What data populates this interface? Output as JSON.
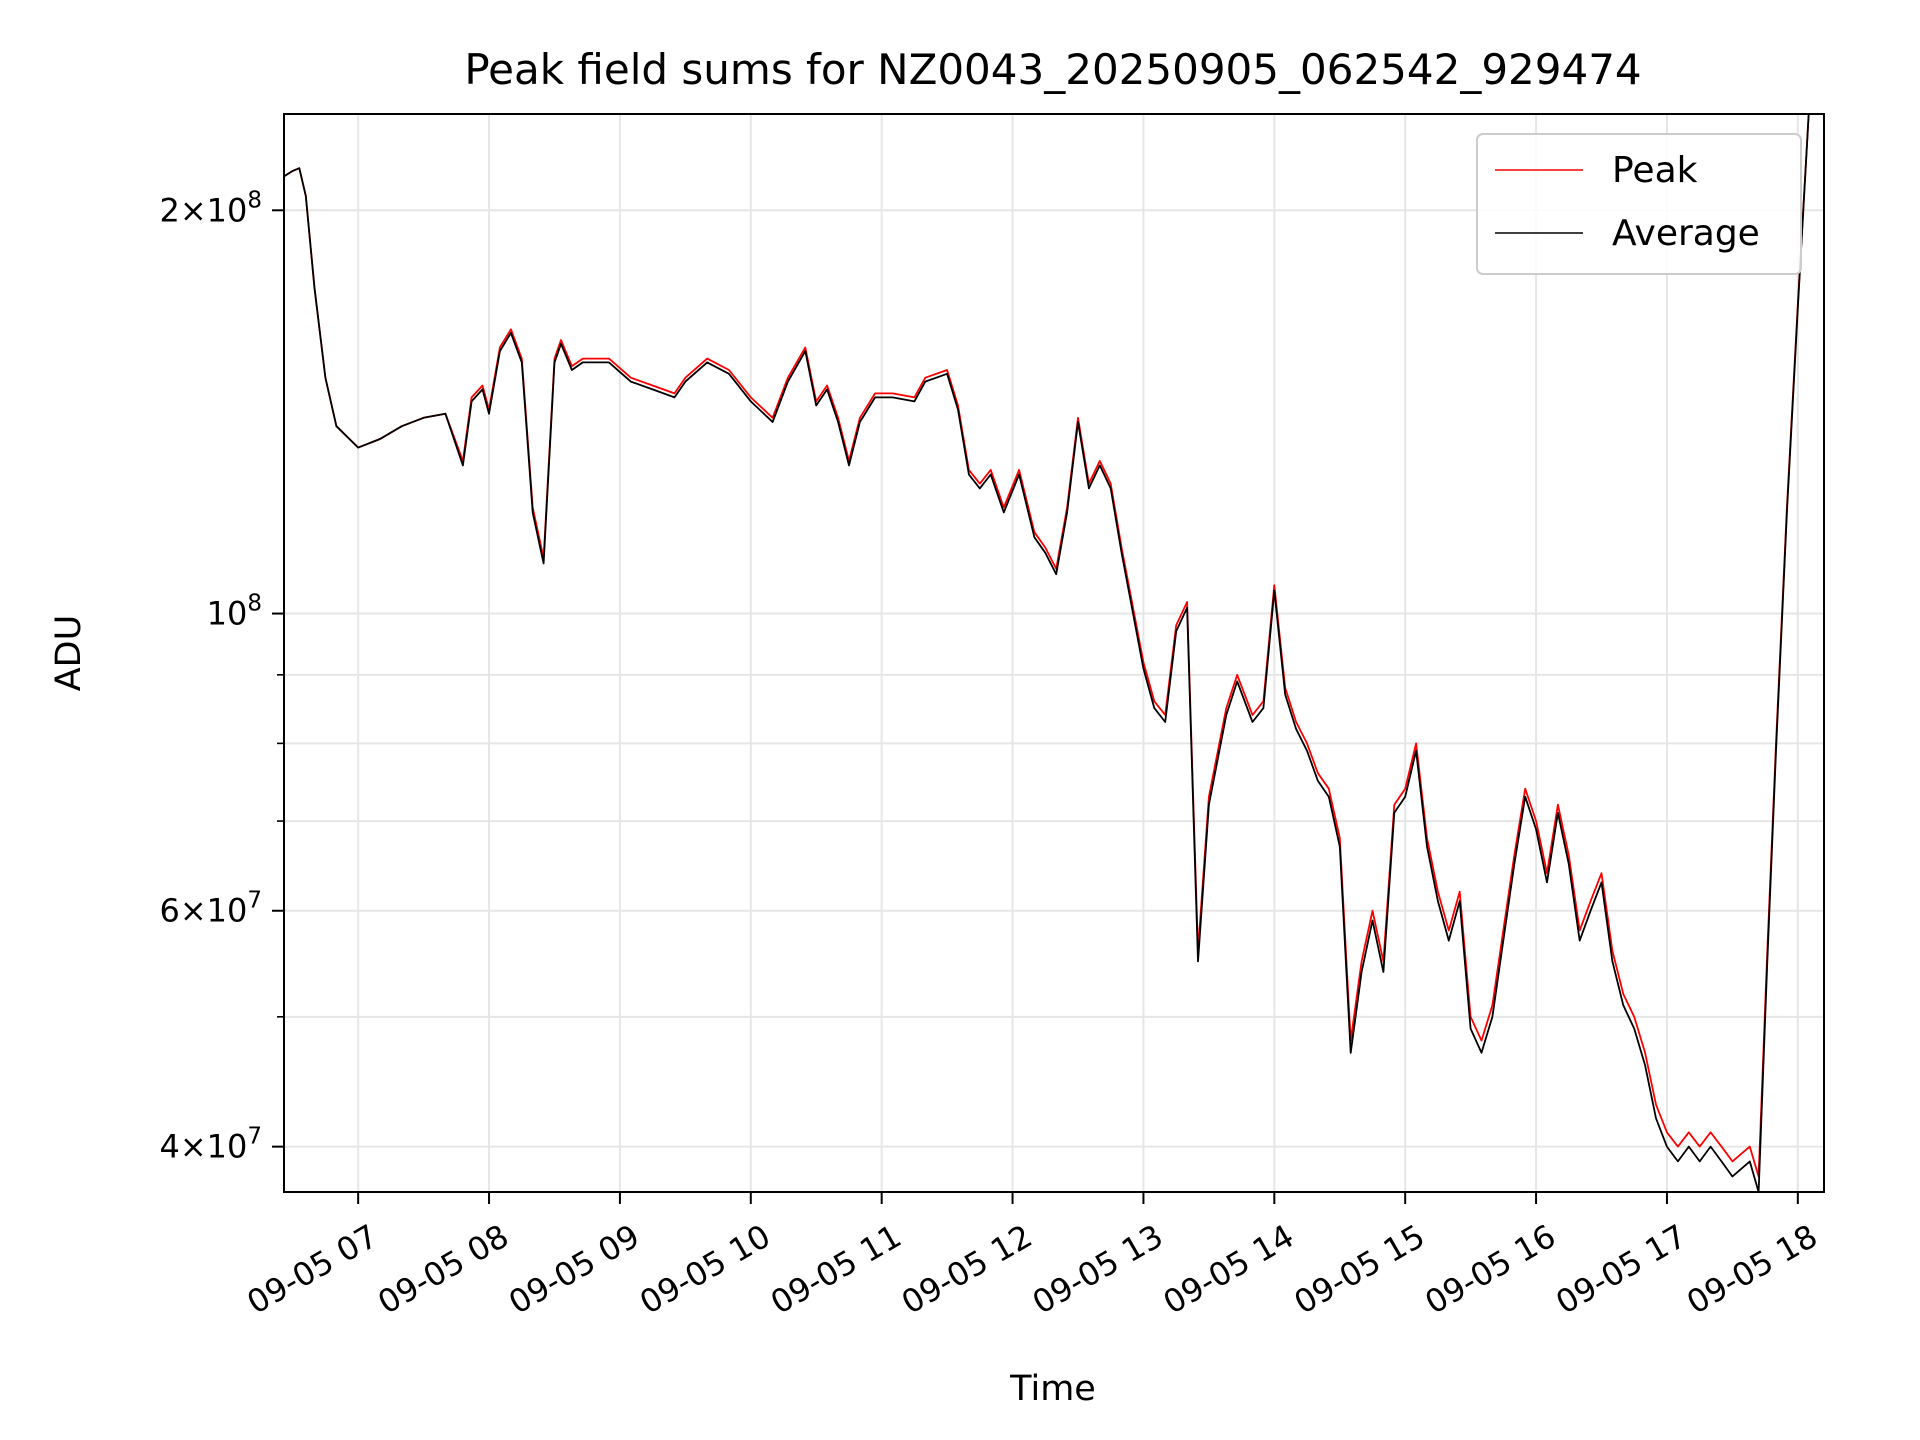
{
  "chart_data": {
    "type": "line",
    "title": "Peak field sums for NZ0043_20250905_062542_929474",
    "xlabel": "Time",
    "ylabel": "ADU",
    "y_scale": "log",
    "ylim": [
      37000000,
      236000000
    ],
    "xlim": [
      "09-05 06:26",
      "09-05 18:12"
    ],
    "grid": true,
    "legend_position": "upper right",
    "x_ticks": [
      "09-05 07",
      "09-05 08",
      "09-05 09",
      "09-05 10",
      "09-05 11",
      "09-05 12",
      "09-05 13",
      "09-05 14",
      "09-05 15",
      "09-05 16",
      "09-05 17",
      "09-05 18"
    ],
    "y_ticks": [
      {
        "value": 200000000,
        "mantissa": "2",
        "exponent": "8"
      },
      {
        "value": 100000000,
        "mantissa": "",
        "exponent": "8"
      },
      {
        "value": 60000000,
        "mantissa": "6",
        "exponent": "7"
      },
      {
        "value": 40000000,
        "mantissa": "4",
        "exponent": "7"
      }
    ],
    "y_minor_ticks": [
      50000000,
      70000000,
      80000000,
      90000000
    ],
    "x_unit_note": "x values are times on 2025-09-05 (HH:MM)",
    "series": [
      {
        "name": "Peak",
        "color": "#ff0000"
      },
      {
        "name": "Average",
        "color": "#000000"
      }
    ],
    "x": [
      "06:26",
      "06:30",
      "06:33",
      "06:36",
      "06:40",
      "06:45",
      "06:50",
      "07:00",
      "07:10",
      "07:20",
      "07:30",
      "07:40",
      "07:48",
      "07:52",
      "07:57",
      "08:00",
      "08:05",
      "08:10",
      "08:15",
      "08:20",
      "08:25",
      "08:30",
      "08:33",
      "08:38",
      "08:43",
      "08:48",
      "08:55",
      "09:05",
      "09:15",
      "09:25",
      "09:30",
      "09:40",
      "09:50",
      "10:00",
      "10:10",
      "10:17",
      "10:25",
      "10:30",
      "10:35",
      "10:40",
      "10:45",
      "10:50",
      "10:57",
      "11:05",
      "11:15",
      "11:20",
      "11:30",
      "11:35",
      "11:40",
      "11:45",
      "11:50",
      "11:56",
      "12:03",
      "12:10",
      "12:15",
      "12:20",
      "12:25",
      "12:30",
      "12:35",
      "12:40",
      "12:45",
      "12:50",
      "13:00",
      "13:05",
      "13:10",
      "13:15",
      "13:20",
      "13:25",
      "13:30",
      "13:38",
      "13:43",
      "13:50",
      "13:55",
      "14:00",
      "14:05",
      "14:10",
      "14:15",
      "14:20",
      "14:25",
      "14:30",
      "14:35",
      "14:40",
      "14:45",
      "14:50",
      "14:55",
      "15:00",
      "15:05",
      "15:10",
      "15:15",
      "15:20",
      "15:25",
      "15:30",
      "15:35",
      "15:40",
      "15:45",
      "15:50",
      "15:55",
      "16:00",
      "16:05",
      "16:10",
      "16:15",
      "16:20",
      "16:25",
      "16:30",
      "16:35",
      "16:40",
      "16:45",
      "16:50",
      "16:55",
      "17:00",
      "17:05",
      "17:10",
      "17:15",
      "17:20",
      "17:25",
      "17:30",
      "17:38",
      "17:42",
      "17:46",
      "17:50",
      "17:55",
      "18:00",
      "18:05",
      "18:12"
    ],
    "peak": [
      212,
      214,
      215,
      205,
      175,
      150,
      138,
      133,
      135,
      138,
      140,
      141,
      130,
      145,
      148,
      142,
      158,
      163,
      155,
      120,
      110,
      155,
      160,
      153,
      155,
      155,
      155,
      150,
      148,
      146,
      150,
      155,
      152,
      145,
      140,
      150,
      158,
      144,
      148,
      140,
      130,
      140,
      146,
      146,
      145,
      150,
      152,
      143,
      128,
      125,
      128,
      120,
      128,
      115,
      112,
      108,
      120,
      140,
      125,
      130,
      125,
      112,
      92,
      86,
      84,
      98,
      102,
      56,
      73,
      85,
      90,
      84,
      86,
      105,
      88,
      83,
      80,
      76,
      74,
      68,
      48,
      55,
      60,
      55,
      72,
      74,
      80,
      68,
      62,
      58,
      62,
      50,
      48,
      51,
      58,
      66,
      74,
      70,
      64,
      72,
      66,
      58,
      61,
      64,
      56,
      52,
      50,
      47,
      43,
      41,
      40,
      41,
      40,
      41,
      40,
      39,
      40,
      38,
      56,
      80,
      120,
      170,
      236
    ],
    "average": [
      212,
      214,
      215,
      205,
      175,
      150,
      138,
      133,
      135,
      138,
      140,
      141,
      129,
      144,
      147,
      141,
      157,
      162,
      154,
      119,
      109,
      154,
      159,
      152,
      154,
      154,
      154,
      149,
      147,
      145,
      149,
      154,
      151,
      144,
      139,
      149,
      157,
      143,
      147,
      139,
      129,
      139,
      145,
      145,
      144,
      149,
      151,
      142,
      127,
      124,
      127,
      119,
      127,
      114,
      111,
      107,
      119,
      139,
      124,
      129,
      124,
      111,
      91,
      85,
      83,
      97,
      101,
      55,
      72,
      84,
      89,
      83,
      85,
      104,
      87,
      82,
      79,
      75,
      73,
      67,
      47,
      54,
      59,
      54,
      71,
      73,
      79,
      67,
      61,
      57,
      61,
      49,
      47,
      50,
      57,
      65,
      73,
      69,
      63,
      71,
      65,
      57,
      60,
      63,
      55,
      51,
      49,
      46,
      42,
      40,
      39,
      40,
      39,
      40,
      39,
      38,
      39,
      37,
      55,
      79,
      119,
      169,
      236
    ],
    "value_unit_note": "series values listed in millions of ADU (x 10^6)"
  }
}
